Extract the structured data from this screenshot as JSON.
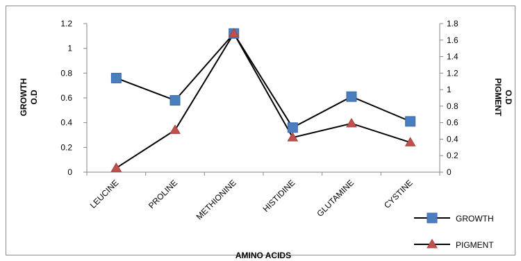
{
  "chart_data": {
    "type": "line",
    "categories": [
      "LEUCINE",
      "PROLINE",
      "METHIONINE",
      "HISTIDINE",
      "GLUTAMINE",
      "CYSTINE"
    ],
    "series": [
      {
        "name": "GROWTH",
        "axis": "left",
        "marker": "square",
        "color": "#4a7ebf",
        "values": [
          0.76,
          0.58,
          1.12,
          0.36,
          0.61,
          0.41
        ]
      },
      {
        "name": "PIGMENT",
        "axis": "right",
        "marker": "triangle",
        "color": "#c0504d",
        "values": [
          0.05,
          0.51,
          1.68,
          0.42,
          0.59,
          0.36
        ]
      }
    ],
    "xlabel": "AMINO ACIDS",
    "ylabel": [
      "GROWTH",
      "O.D"
    ],
    "y2label": [
      "PIGMENT",
      "O.D"
    ],
    "ylim": [
      0,
      1.2
    ],
    "yticks": [
      "0",
      "0.2",
      "0.4",
      "0.6",
      "0.8",
      "1",
      "1.2"
    ],
    "y2lim": [
      0,
      1.8
    ],
    "y2ticks": [
      "0",
      "0.2",
      "0.4",
      "0.6",
      "0.8",
      "1",
      "1.2",
      "1.4",
      "1.6",
      "1.8"
    ],
    "grid": false,
    "legend": "bottom-right",
    "line_color": "#000000"
  }
}
